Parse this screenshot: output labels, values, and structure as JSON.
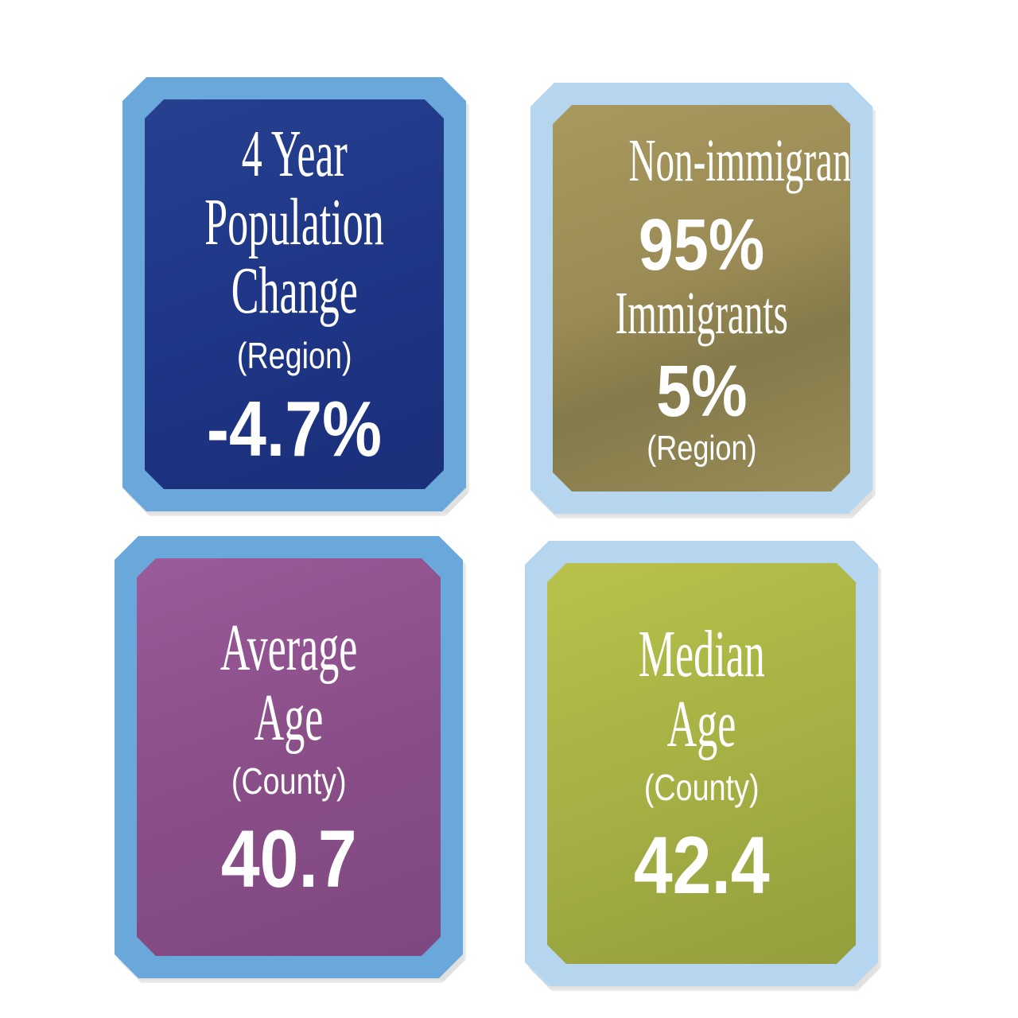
{
  "cards": {
    "population_change": {
      "title_line1": "4 Year",
      "title_line2": "Population",
      "title_line3": "Change",
      "scope": "(Region)",
      "value": "-4.7%",
      "border_color": "#6aa8dc",
      "fill_color": "#1e3585"
    },
    "immigration": {
      "label1": "Non-immigrants",
      "value1": "95%",
      "label2": "Immigrants",
      "value2": "5%",
      "scope": "(Region)",
      "border_color": "#b6d5ee",
      "fill_color": "#9a8a55"
    },
    "average_age": {
      "title_line1": "Average",
      "title_line2": "Age",
      "scope": "(County)",
      "value": "40.7",
      "border_color": "#6aa8dc",
      "fill_color": "#8a4e88"
    },
    "median_age": {
      "title_line1": "Median",
      "title_line2": "Age",
      "scope": "(County)",
      "value": "42.4",
      "border_color": "#b6d5ee",
      "fill_color": "#a6b044"
    }
  }
}
